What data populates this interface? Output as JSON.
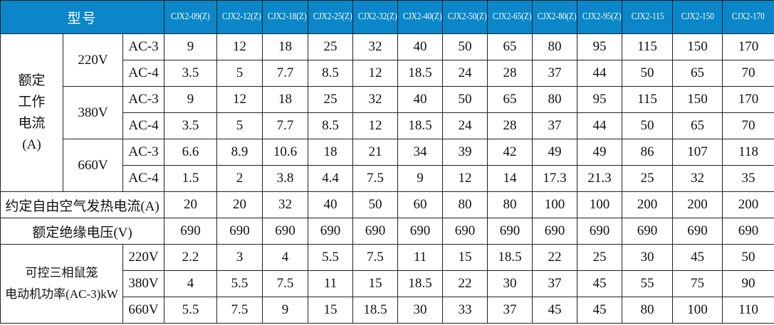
{
  "header": {
    "model_label": "型号",
    "models": [
      "CJX2-09(Z)",
      "CJX2-12(Z)",
      "CJX2-18(Z)",
      "CJX2-25(Z)",
      "CJX2-32(Z)",
      "CJX2-40(Z)",
      "CJX2-50(Z)",
      "CJX2-65(Z)",
      "CJX2-80(Z)",
      "CJX2-95(Z)",
      "CJX2-115",
      "CJX2-150",
      "CJX2-170"
    ]
  },
  "rated_current": {
    "label_lines": [
      "额定",
      "工作",
      "电流",
      "(A)"
    ],
    "groups": [
      {
        "voltage": "220V",
        "rows": [
          {
            "cat": "AC-3",
            "values": [
              "9",
              "12",
              "18",
              "25",
              "32",
              "40",
              "50",
              "65",
              "80",
              "95",
              "115",
              "150",
              "170"
            ]
          },
          {
            "cat": "AC-4",
            "values": [
              "3.5",
              "5",
              "7.7",
              "8.5",
              "12",
              "18.5",
              "24",
              "28",
              "37",
              "44",
              "50",
              "65",
              "70"
            ]
          }
        ]
      },
      {
        "voltage": "380V",
        "rows": [
          {
            "cat": "AC-3",
            "values": [
              "9",
              "12",
              "18",
              "25",
              "32",
              "40",
              "50",
              "65",
              "80",
              "95",
              "115",
              "150",
              "170"
            ]
          },
          {
            "cat": "AC-4",
            "values": [
              "3.5",
              "5",
              "7.7",
              "8.5",
              "12",
              "18.5",
              "24",
              "28",
              "37",
              "44",
              "50",
              "65",
              "70"
            ]
          }
        ]
      },
      {
        "voltage": "660V",
        "rows": [
          {
            "cat": "AC-3",
            "values": [
              "6.6",
              "8.9",
              "10.6",
              "18",
              "21",
              "34",
              "39",
              "42",
              "49",
              "49",
              "86",
              "107",
              "118"
            ]
          },
          {
            "cat": "AC-4",
            "values": [
              "1.5",
              "2",
              "3.8",
              "4.4",
              "7.5",
              "9",
              "12",
              "14",
              "17.3",
              "21.3",
              "25",
              "32",
              "35"
            ]
          }
        ]
      }
    ]
  },
  "thermal": {
    "label": "约定自由空气发热电流(A)",
    "values": [
      "20",
      "20",
      "32",
      "40",
      "50",
      "60",
      "80",
      "80",
      "100",
      "100",
      "200",
      "200",
      "200"
    ]
  },
  "insulation": {
    "label": "额定绝缘电压(V)",
    "values": [
      "690",
      "690",
      "690",
      "690",
      "690",
      "690",
      "690",
      "690",
      "690",
      "690",
      "690",
      "690",
      "690"
    ]
  },
  "motor_power": {
    "label_lines": [
      "可控三相鼠笼",
      "电动机功率(AC-3)kW"
    ],
    "rows": [
      {
        "voltage": "220V",
        "values": [
          "2.2",
          "3",
          "4",
          "5.5",
          "7.5",
          "11",
          "15",
          "18.5",
          "22",
          "25",
          "30",
          "45",
          "50"
        ]
      },
      {
        "voltage": "380V",
        "values": [
          "4",
          "5.5",
          "7.5",
          "11",
          "15",
          "18.5",
          "22",
          "30",
          "37",
          "45",
          "55",
          "75",
          "90"
        ]
      },
      {
        "voltage": "660V",
        "values": [
          "5.5",
          "7.5",
          "9",
          "15",
          "18.5",
          "30",
          "33",
          "37",
          "45",
          "45",
          "80",
          "100",
          "110"
        ]
      }
    ]
  }
}
